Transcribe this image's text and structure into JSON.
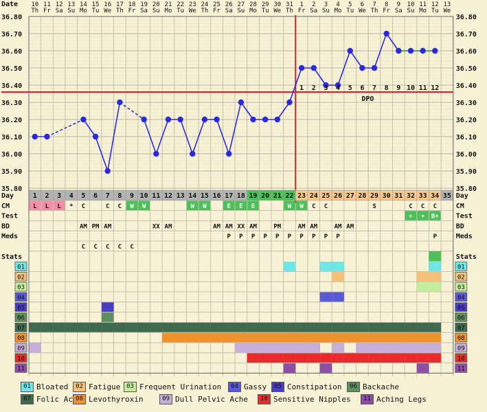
{
  "chart_data": {
    "type": "line",
    "ylim": [
      35.8,
      36.8
    ],
    "y_ticks": [
      "35.80",
      "35.90",
      "36.00",
      "36.10",
      "36.20",
      "36.30",
      "36.40",
      "36.50",
      "36.60",
      "36.70",
      "36.80"
    ],
    "header_label": "Date",
    "dates": [
      "10",
      "11",
      "12",
      "13",
      "14",
      "15",
      "16",
      "17",
      "18",
      "19",
      "20",
      "21",
      "22",
      "23",
      "24",
      "25",
      "26",
      "27",
      "28",
      "29",
      "30",
      "31",
      "1",
      "2",
      "3",
      "4",
      "5",
      "6",
      "7",
      "8",
      "9",
      "10",
      "11",
      "12",
      "13"
    ],
    "weekdays": [
      "Th",
      "Fr",
      "Sa",
      "Su",
      "Mo",
      "Tu",
      "We",
      "Th",
      "Fr",
      "Sa",
      "Su",
      "Mo",
      "Tu",
      "We",
      "Th",
      "Fr",
      "Sa",
      "Su",
      "Mo",
      "Tu",
      "We",
      "Th",
      "Fr",
      "Sa",
      "Su",
      "Mo",
      "Tu",
      "We",
      "Th",
      "Fr",
      "Sa",
      "Su",
      "Mo",
      "Tu",
      "We"
    ],
    "day_label": "Day",
    "days": [
      1,
      2,
      3,
      4,
      5,
      6,
      7,
      8,
      9,
      10,
      11,
      12,
      13,
      14,
      15,
      16,
      17,
      18,
      19,
      20,
      21,
      22,
      23,
      24,
      25,
      26,
      27,
      28,
      29,
      30,
      31,
      32,
      33,
      34,
      35
    ],
    "temps": [
      36.1,
      36.1,
      null,
      null,
      36.2,
      36.1,
      35.9,
      36.3,
      null,
      36.2,
      36.0,
      36.2,
      36.2,
      36.0,
      36.2,
      36.2,
      36.0,
      36.3,
      36.2,
      36.2,
      36.2,
      36.3,
      36.5,
      36.5,
      36.4,
      36.4,
      36.6,
      36.5,
      36.5,
      36.7,
      36.6,
      36.6,
      36.6,
      36.6,
      null
    ],
    "coverline": 36.36,
    "ovulation_day": 22,
    "dpo_labels": [
      "1",
      "2",
      "3",
      "4",
      "5",
      "6",
      "7",
      "8",
      "9",
      "10",
      "11",
      "12"
    ],
    "dpo_title": "DPO",
    "row_labels": {
      "cm": "CM",
      "test": "Test",
      "bd": "BD",
      "meds": "Meds",
      "stats": "Stats"
    },
    "cm": [
      "L",
      "L",
      "L",
      "*",
      "C",
      "",
      "C",
      "C",
      "W",
      "W",
      "",
      "",
      "",
      "W",
      "W",
      "",
      "E",
      "E",
      "E",
      "",
      "",
      "W",
      "W",
      "C",
      "C",
      "",
      "",
      "",
      "S",
      "",
      "",
      "C",
      "C",
      "C",
      ""
    ],
    "test": [
      "",
      "",
      "",
      "",
      "",
      "",
      "",
      "",
      "",
      "",
      "",
      "",
      "",
      "",
      "",
      "",
      "",
      "",
      "",
      "",
      "",
      "",
      "",
      "",
      "",
      "",
      "",
      "",
      "",
      "",
      "",
      "+",
      "+",
      "B+",
      ""
    ],
    "bd": [
      "",
      "",
      "",
      "",
      "AM",
      "PM",
      "AM",
      "",
      "",
      "",
      "XX",
      "AM",
      "",
      "",
      "",
      "AM",
      "AM",
      "XX",
      "AM",
      "",
      "PM",
      "",
      "AM",
      "AM",
      "",
      "AM",
      "AM",
      "",
      "",
      "",
      "",
      "",
      "",
      "",
      ""
    ],
    "meds": [
      "",
      "",
      "",
      "",
      "",
      "",
      "",
      "",
      "",
      "",
      "",
      "",
      "",
      "",
      "",
      "",
      "P",
      "P",
      "P",
      "P",
      "P",
      "P",
      "P",
      "P",
      "P",
      "P",
      "",
      "",
      "",
      "",
      "",
      "",
      "",
      "P",
      ""
    ],
    "extra": [
      "",
      "",
      "",
      "",
      "C",
      "C",
      "C",
      "C",
      "C",
      "",
      "",
      "",
      "",
      "",
      "",
      "",
      "",
      "",
      "",
      "",
      "",
      "",
      "",
      "",
      "",
      "",
      "",
      "",
      "",
      "",
      "",
      "",
      "",
      "",
      ""
    ],
    "symptom_rows": [
      {
        "code": "01",
        "color": "#6ee6e6",
        "days": [
          22,
          25,
          26,
          34
        ]
      },
      {
        "code": "02",
        "color": "#f5c07a",
        "days": [
          26,
          33,
          34
        ]
      },
      {
        "code": "03",
        "color": "#c4ee9c",
        "days": [
          33,
          34
        ]
      },
      {
        "code": "04",
        "color": "#5a5ad8",
        "days": [
          25,
          26
        ]
      },
      {
        "code": "05",
        "color": "#4a3ec0",
        "days": [
          7
        ]
      },
      {
        "code": "06",
        "color": "#5e8f5e",
        "days": [
          7
        ]
      },
      {
        "code": "07",
        "color": "#3f6a4e",
        "days": [
          1,
          2,
          3,
          4,
          5,
          6,
          7,
          8,
          9,
          10,
          11,
          12,
          13,
          14,
          15,
          16,
          17,
          18,
          19,
          20,
          21,
          22,
          23,
          24,
          25,
          26,
          27,
          28,
          29,
          30,
          31,
          32,
          33,
          34
        ]
      },
      {
        "code": "08",
        "color": "#ee922e",
        "days": [
          12,
          13,
          14,
          15,
          16,
          17,
          18,
          19,
          20,
          21,
          22,
          23,
          24,
          25,
          26,
          27,
          28,
          29,
          30,
          31,
          32,
          33,
          34
        ]
      },
      {
        "code": "09",
        "color": "#c7aed8",
        "days": [
          1,
          18,
          19,
          20,
          21,
          22,
          23,
          24,
          26,
          28,
          29,
          30,
          31,
          32,
          33,
          34
        ]
      },
      {
        "code": "10",
        "color": "#e82c2c",
        "days": [
          19,
          20,
          21,
          22,
          23,
          24,
          25,
          26,
          27,
          28,
          29,
          30,
          31,
          32,
          33,
          34
        ]
      },
      {
        "code": "11",
        "color": "#8e4ea6",
        "days": [
          22,
          25,
          33
        ]
      }
    ],
    "legend": [
      {
        "code": "01",
        "label": "Bloated",
        "color": "#6ee6e6"
      },
      {
        "code": "02",
        "label": "Fatigue",
        "color": "#f5c07a"
      },
      {
        "code": "03",
        "label": "Frequent Urination",
        "color": "#c4ee9c"
      },
      {
        "code": "04",
        "label": "Gassy",
        "color": "#5a5ad8"
      },
      {
        "code": "05",
        "label": "Constipation",
        "color": "#4a3ec0"
      },
      {
        "code": "06",
        "label": "Backache",
        "color": "#5e8f5e"
      },
      {
        "code": "07",
        "label": "Folic Acid",
        "color": "#3f6a4e"
      },
      {
        "code": "08",
        "label": "Levothyroxin",
        "color": "#ee922e"
      },
      {
        "code": "09",
        "label": "Dull Pelvic Ache",
        "color": "#c7aed8"
      },
      {
        "code": "10",
        "label": "Sensitive Nipples",
        "color": "#e82c2c"
      },
      {
        "code": "11",
        "label": "Aching Legs",
        "color": "#8e4ea6"
      }
    ],
    "colors": {
      "line": "#2a2adc",
      "coverline": "#d02020",
      "fertile_green": "#4fbf5a",
      "day_cell": "#b3b3b3",
      "luteal_cell": "#f5c890",
      "bg": "#f7f1d6",
      "grid": "#b9b5a2"
    }
  }
}
